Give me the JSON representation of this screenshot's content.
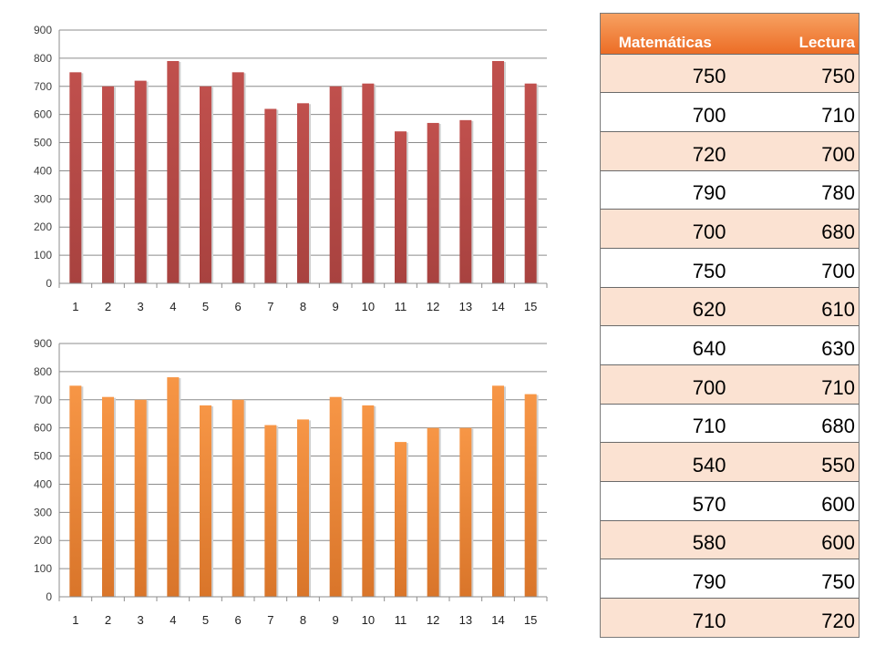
{
  "chart_data": [
    {
      "type": "bar",
      "categories": [
        "1",
        "2",
        "3",
        "4",
        "5",
        "6",
        "7",
        "8",
        "9",
        "10",
        "11",
        "12",
        "13",
        "14",
        "15"
      ],
      "series": [
        {
          "values": [
            750,
            700,
            720,
            790,
            700,
            750,
            620,
            640,
            700,
            710,
            540,
            570,
            580,
            790,
            710
          ]
        }
      ],
      "yticks": [
        "0",
        "100",
        "200",
        "300",
        "400",
        "500",
        "600",
        "700",
        "800",
        "900"
      ],
      "ylim": [
        0,
        900
      ],
      "grid": true,
      "colors": {
        "bar": "#c0504d",
        "bar_dark": "#a8423f"
      }
    },
    {
      "type": "bar",
      "categories": [
        "1",
        "2",
        "3",
        "4",
        "5",
        "6",
        "7",
        "8",
        "9",
        "10",
        "11",
        "12",
        "13",
        "14",
        "15"
      ],
      "series": [
        {
          "values": [
            750,
            710,
            700,
            780,
            680,
            700,
            610,
            630,
            710,
            680,
            550,
            600,
            600,
            750,
            720
          ]
        }
      ],
      "yticks": [
        "0",
        "100",
        "200",
        "300",
        "400",
        "500",
        "600",
        "700",
        "800",
        "900"
      ],
      "ylim": [
        0,
        900
      ],
      "grid": true,
      "colors": {
        "bar": "#f79646",
        "bar_dark": "#d9752a"
      }
    }
  ],
  "table": {
    "headers": [
      "Matemáticas",
      "Lectura"
    ],
    "rows": [
      [
        "750",
        "750"
      ],
      [
        "700",
        "710"
      ],
      [
        "720",
        "700"
      ],
      [
        "790",
        "780"
      ],
      [
        "700",
        "680"
      ],
      [
        "750",
        "700"
      ],
      [
        "620",
        "610"
      ],
      [
        "640",
        "630"
      ],
      [
        "700",
        "710"
      ],
      [
        "710",
        "680"
      ],
      [
        "540",
        "550"
      ],
      [
        "570",
        "600"
      ],
      [
        "580",
        "600"
      ],
      [
        "790",
        "750"
      ],
      [
        "710",
        "720"
      ]
    ]
  }
}
